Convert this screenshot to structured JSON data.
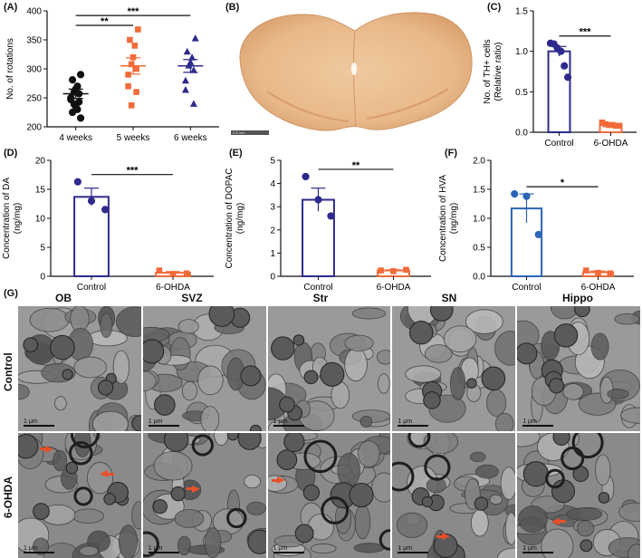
{
  "panels": {
    "A": "(A)",
    "B": "(B)",
    "C": "(C)",
    "D": "(D)",
    "E": "(E)",
    "F": "(F)",
    "G": "(G)"
  },
  "colors": {
    "navy": "#2e2a8c",
    "orange": "#f26b3a",
    "blue": "#2a66b5",
    "arrow": "#e8502a",
    "tissue": "#e8b98a"
  },
  "slice_scalebar": "2.5 mm",
  "chart_data": [
    {
      "id": "A",
      "type": "scatter",
      "ylabel": "No. of rotations",
      "categories": [
        "4 weeks",
        "5 weeks",
        "6 weeks"
      ],
      "ylim": [
        200,
        400
      ],
      "yticks": [
        "200",
        "250",
        "300",
        "350",
        "400"
      ],
      "series": [
        {
          "category": "4 weeks",
          "marker": "circle",
          "color": "#111111",
          "mean": 257,
          "sem": 8,
          "values": [
            290,
            281,
            270,
            265,
            260,
            257,
            250,
            247,
            243,
            239,
            235,
            230,
            225,
            215
          ]
        },
        {
          "category": "5 weeks",
          "marker": "square",
          "color": "#f26b3a",
          "mean": 305,
          "sem": 14,
          "values": [
            368,
            350,
            340,
            320,
            308,
            300,
            290,
            270,
            260,
            237
          ]
        },
        {
          "category": "6 weeks",
          "marker": "triangle",
          "color": "#2e2a8c",
          "mean": 305,
          "sem": 11,
          "values": [
            353,
            330,
            320,
            312,
            306,
            298,
            280,
            264,
            240
          ]
        }
      ],
      "significance": [
        {
          "from": "4 weeks",
          "to": "5 weeks",
          "label": "**"
        },
        {
          "from": "4 weeks",
          "to": "6 weeks",
          "label": "***"
        }
      ]
    },
    {
      "id": "C",
      "type": "bar",
      "ylabel": "No. of TH+ cells",
      "ylabel2": "(Relative ratio)",
      "categories": [
        "Control",
        "6-OHDA"
      ],
      "ylim": [
        0,
        1.5
      ],
      "yticks": [
        "0.0",
        "0.5",
        "1.0",
        "1.5"
      ],
      "bars": [
        {
          "name": "Control",
          "value": 1.0,
          "sem": 0.06,
          "edge": "#2e2a8c",
          "marker": "circle",
          "points": [
            1.1,
            1.09,
            1.04,
            1.0,
            0.82,
            0.68
          ]
        },
        {
          "name": "6-OHDA",
          "value": 0.09,
          "sem": 0.01,
          "edge": "#f26b3a",
          "marker": "square",
          "points": [
            0.12,
            0.1,
            0.09,
            0.09,
            0.08,
            0.08
          ]
        }
      ],
      "significance": [
        {
          "label": "***"
        }
      ]
    },
    {
      "id": "D",
      "type": "bar",
      "ylabel": "Concentration of DA",
      "ylabel2": "(ng/mg)",
      "categories": [
        "Control",
        "6-OHDA"
      ],
      "ylim": [
        0,
        20
      ],
      "yticks": [
        "0",
        "5",
        "10",
        "15",
        "20"
      ],
      "bars": [
        {
          "name": "Control",
          "value": 13.7,
          "sem": 1.5,
          "edge": "#2e2a8c",
          "marker": "circle",
          "points": [
            16.3,
            13.0,
            11.5
          ]
        },
        {
          "name": "6-OHDA",
          "value": 0.6,
          "sem": 0.2,
          "edge": "#f26b3a",
          "marker": "square",
          "points": [
            1.0,
            0.4,
            0.5
          ]
        }
      ],
      "significance": [
        {
          "label": "***"
        }
      ]
    },
    {
      "id": "E",
      "type": "bar",
      "ylabel": "Concentration of DOPAC",
      "ylabel2": "(ng/mg)",
      "categories": [
        "Control",
        "6-OHDA"
      ],
      "ylim": [
        0,
        5
      ],
      "yticks": [
        "0",
        "1",
        "2",
        "3",
        "4",
        "5"
      ],
      "bars": [
        {
          "name": "Control",
          "value": 3.3,
          "sem": 0.5,
          "edge": "#2e2a8c",
          "marker": "circle",
          "points": [
            4.3,
            3.3,
            2.6
          ]
        },
        {
          "name": "6-OHDA",
          "value": 0.25,
          "sem": 0.03,
          "edge": "#f26b3a",
          "marker": "square",
          "points": [
            0.25,
            0.22,
            0.28
          ]
        }
      ],
      "significance": [
        {
          "label": "**"
        }
      ]
    },
    {
      "id": "F",
      "type": "bar",
      "ylabel": "Concentration of HVA",
      "ylabel2": "(ng/mg)",
      "categories": [
        "Control",
        "6-OHDA"
      ],
      "ylim": [
        0,
        2
      ],
      "yticks": [
        "0.0",
        "0.5",
        "1.0",
        "1.5",
        "2.0"
      ],
      "bars": [
        {
          "name": "Control",
          "value": 1.17,
          "sem": 0.25,
          "edge": "#2a66b5",
          "marker": "circle",
          "points": [
            1.42,
            1.38,
            0.72
          ]
        },
        {
          "name": "6-OHDA",
          "value": 0.07,
          "sem": 0.02,
          "edge": "#f26b3a",
          "marker": "square",
          "points": [
            0.1,
            0.06,
            0.05
          ]
        }
      ],
      "significance": [
        {
          "label": "*"
        }
      ]
    }
  ],
  "em": {
    "columns": [
      "OB",
      "SVZ",
      "Str",
      "SN",
      "Hippo"
    ],
    "rows": [
      "Control",
      "6-OHDA"
    ],
    "scalebar": "1 μm"
  }
}
